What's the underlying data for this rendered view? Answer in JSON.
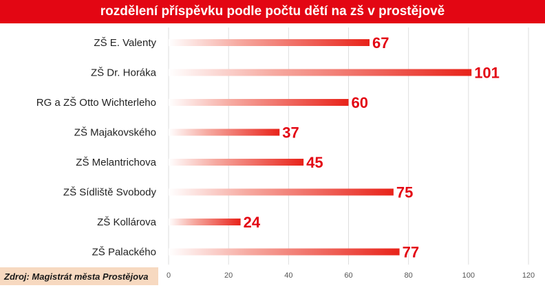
{
  "title": "rozdělení příspěvku podle počtu dětí na zš v prostějově",
  "source": "Zdroj: Magistrát města Prostějova",
  "colors": {
    "title_bg": "#e30613",
    "bar": "#e8231a",
    "value_label": "#e30613",
    "source_bg": "#f7d9c0"
  },
  "chart_data": {
    "type": "bar",
    "orientation": "horizontal",
    "categories": [
      "ZŠ E. Valenty",
      "ZŠ Dr. Horáka",
      "RG a ZŠ Otto Wichterleho",
      "ZŠ Majakovského",
      "ZŠ Melantrichova",
      "ZŠ Sídliště Svobody",
      "ZŠ Kollárova",
      "ZŠ Palackého"
    ],
    "values": [
      67,
      101,
      60,
      37,
      45,
      75,
      24,
      77
    ],
    "xlim": [
      0,
      120
    ],
    "xticks": [
      0,
      20,
      40,
      60,
      80,
      100,
      120
    ],
    "grid": true,
    "legend": "none",
    "data_labels": true
  }
}
